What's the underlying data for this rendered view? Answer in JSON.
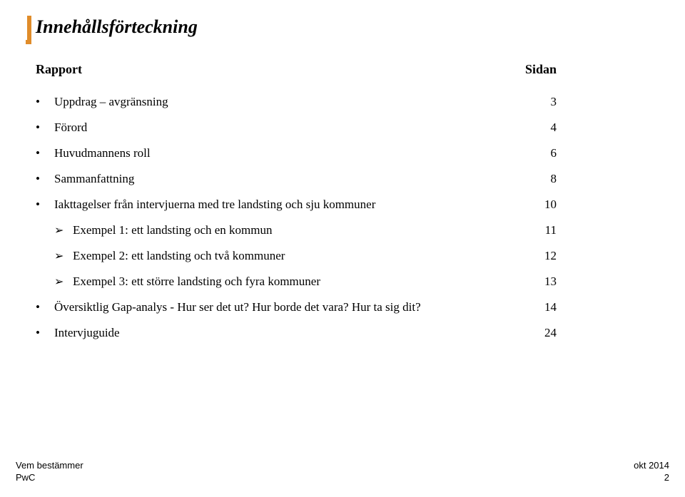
{
  "title": "Innehållsförteckning",
  "header": {
    "left": "Rapport",
    "right": "Sidan"
  },
  "toc": [
    {
      "bullet": "•",
      "indent": false,
      "label": "Uppdrag – avgränsning",
      "page": "3"
    },
    {
      "bullet": "•",
      "indent": false,
      "label": "Förord",
      "page": "4"
    },
    {
      "bullet": "•",
      "indent": false,
      "label": "Huvudmannens roll",
      "page": "6"
    },
    {
      "bullet": "•",
      "indent": false,
      "label": "Sammanfattning",
      "page": "8"
    },
    {
      "bullet": "•",
      "indent": false,
      "label": "Iakttagelser från intervjuerna med tre landsting och sju kommuner",
      "page": "10"
    },
    {
      "bullet": "➢",
      "indent": true,
      "label": "Exempel 1: ett landsting och en kommun",
      "page": "11"
    },
    {
      "bullet": "➢",
      "indent": true,
      "label": "Exempel 2: ett landsting och två kommuner",
      "page": "12"
    },
    {
      "bullet": "➢",
      "indent": true,
      "label": "Exempel 3: ett större landsting och fyra kommuner",
      "page": "13"
    },
    {
      "bullet": "•",
      "indent": false,
      "label": "Översiktlig Gap-analys - Hur ser det ut? Hur borde det vara? Hur ta sig dit?",
      "page": "14"
    },
    {
      "bullet": "•",
      "indent": false,
      "label": "Intervjuguide",
      "page": "24"
    }
  ],
  "footer": {
    "left_line1": "Vem bestämmer",
    "left_line2": "PwC",
    "right_line1": "okt 2014",
    "right_line2": "2"
  },
  "colors": {
    "accent": "#e08c2a",
    "text": "#000000",
    "background": "#ffffff"
  }
}
